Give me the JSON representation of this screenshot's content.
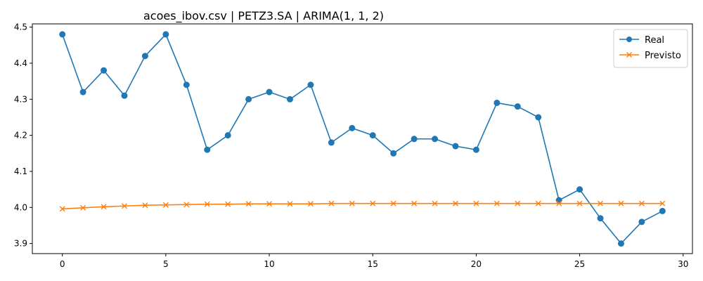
{
  "chart_data": {
    "type": "line",
    "title": "acoes_ibov.csv | PETZ3.SA | ARIMA(1, 1, 2)",
    "xlabel": "",
    "ylabel": "",
    "xlim": [
      -1.45,
      30.45
    ],
    "ylim": [
      3.872,
      4.509
    ],
    "xticks": [
      0,
      5,
      10,
      15,
      20,
      25,
      30
    ],
    "yticks": [
      3.9,
      4.0,
      4.1,
      4.2,
      4.3,
      4.4,
      4.5
    ],
    "xtick_labels": [
      "0",
      "5",
      "10",
      "15",
      "20",
      "25",
      "30"
    ],
    "ytick_labels": [
      "3.9",
      "4.0",
      "4.1",
      "4.2",
      "4.3",
      "4.4",
      "4.5"
    ],
    "grid": false,
    "legend_position": "top-right",
    "x": [
      0,
      1,
      2,
      3,
      4,
      5,
      6,
      7,
      8,
      9,
      10,
      11,
      12,
      13,
      14,
      15,
      16,
      17,
      18,
      19,
      20,
      21,
      22,
      23,
      24,
      25,
      26,
      27,
      28,
      29
    ],
    "series": [
      {
        "name": "Real",
        "color": "#1f77b4",
        "marker": "circle",
        "values": [
          4.48,
          4.32,
          4.38,
          4.31,
          4.42,
          4.48,
          4.34,
          4.16,
          4.2,
          4.3,
          4.32,
          4.3,
          4.34,
          4.18,
          4.22,
          4.2,
          4.15,
          4.19,
          4.19,
          4.17,
          4.16,
          4.29,
          4.28,
          4.25,
          4.02,
          4.05,
          3.97,
          3.9,
          3.96,
          3.99
        ]
      },
      {
        "name": "Previsto",
        "color": "#ff7f0e",
        "marker": "x",
        "values": [
          3.996,
          3.999,
          4.002,
          4.004,
          4.006,
          4.007,
          4.008,
          4.009,
          4.009,
          4.01,
          4.01,
          4.01,
          4.01,
          4.011,
          4.011,
          4.011,
          4.011,
          4.011,
          4.011,
          4.011,
          4.011,
          4.011,
          4.011,
          4.011,
          4.011,
          4.011,
          4.011,
          4.011,
          4.011,
          4.011
        ]
      }
    ]
  }
}
